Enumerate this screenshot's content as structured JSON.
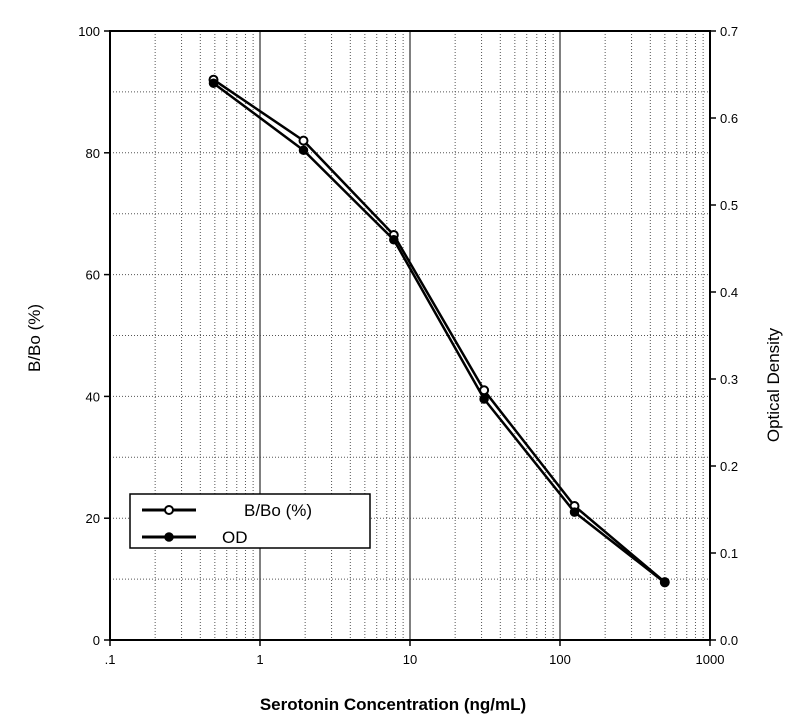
{
  "chart_data": {
    "type": "line",
    "title": "",
    "xlabel": "Serotonin Concentration (ng/mL)",
    "ylabel": "B/Bo (%)",
    "y2label": "Optical Density",
    "xscale": "log",
    "xlim": [
      0.1,
      1000
    ],
    "ylim": [
      0,
      100
    ],
    "y2lim": [
      0,
      0.7
    ],
    "grid": true,
    "legend_position": "lower-left",
    "x_tick_labels": [
      ".1",
      "1",
      "10",
      "100",
      "1000"
    ],
    "y_tick_labels": [
      "0",
      "20",
      "40",
      "60",
      "80",
      "100"
    ],
    "y2_tick_labels": [
      "0.0",
      "0.1",
      "0.2",
      "0.3",
      "0.4",
      "0.5",
      "0.6",
      "0.7"
    ],
    "series": [
      {
        "name": "B/Bo (%)",
        "axis": "left",
        "marker": "open-circle",
        "color": "#000000",
        "x": [
          0.49,
          1.95,
          7.8,
          31.2,
          125,
          500
        ],
        "y": [
          92,
          82,
          66.5,
          41,
          22,
          9.5
        ]
      },
      {
        "name": "OD",
        "axis": "right",
        "marker": "filled-circle",
        "color": "#000000",
        "x": [
          0.49,
          1.95,
          7.8,
          31.2,
          125,
          500
        ],
        "y": [
          0.64,
          0.563,
          0.46,
          0.277,
          0.147,
          0.066
        ]
      }
    ]
  }
}
